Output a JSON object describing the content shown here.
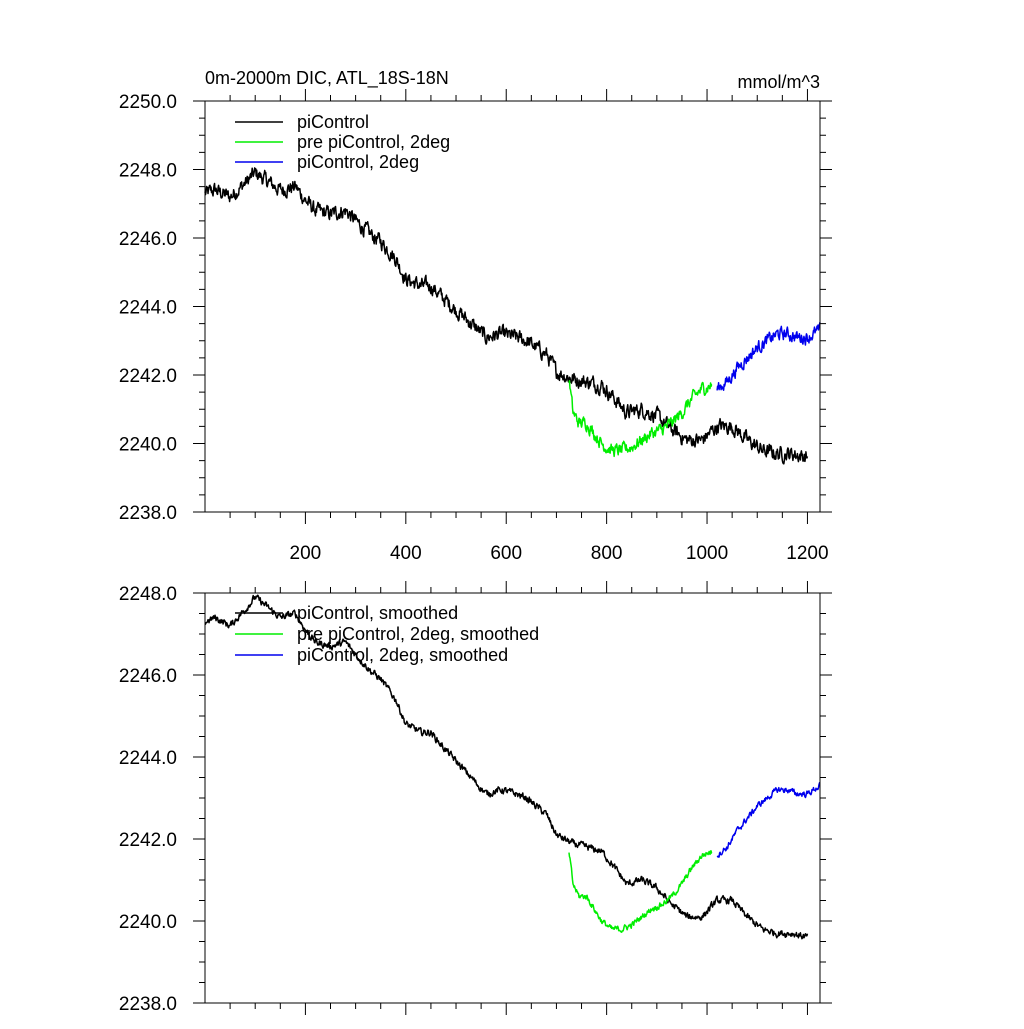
{
  "chart_data": [
    {
      "type": "line",
      "title": "0m-2000m DIC, ATL_18S-18N",
      "units": "mmol/m^3",
      "xlim": [
        0,
        1225
      ],
      "ylim": [
        2238,
        2250
      ],
      "xticks": [
        200,
        400,
        600,
        800,
        1000,
        1200
      ],
      "xtick_labels": [
        "200",
        "400",
        "600",
        "800",
        "1000",
        "1200"
      ],
      "yticks": [
        2238,
        2240,
        2242,
        2244,
        2246,
        2248,
        2250
      ],
      "ytick_labels": [
        "2238.0",
        "2240.0",
        "2242.0",
        "2244.0",
        "2246.0",
        "2248.0",
        "2250.0"
      ],
      "series": [
        {
          "name": "piControl",
          "color": "#000000",
          "noise": 0.35,
          "x": [
            0,
            20,
            50,
            80,
            100,
            120,
            150,
            180,
            200,
            220,
            250,
            280,
            300,
            330,
            350,
            380,
            400,
            430,
            450,
            470,
            500,
            530,
            560,
            590,
            620,
            640,
            660,
            680,
            700,
            730,
            760,
            790,
            810,
            840,
            870,
            900,
            930,
            960,
            990,
            1020,
            1050,
            1080,
            1110,
            1140,
            1170,
            1200
          ],
          "y": [
            2247.3,
            2247.4,
            2247.2,
            2247.6,
            2247.9,
            2247.7,
            2247.4,
            2247.5,
            2247.1,
            2246.8,
            2246.7,
            2246.8,
            2246.5,
            2246.1,
            2245.9,
            2245.4,
            2244.8,
            2244.6,
            2244.6,
            2244.3,
            2243.9,
            2243.5,
            2243.1,
            2243.2,
            2243.1,
            2243.0,
            2242.8,
            2242.6,
            2242.1,
            2241.9,
            2241.8,
            2241.7,
            2241.4,
            2240.9,
            2241.0,
            2240.8,
            2240.4,
            2240.1,
            2240.1,
            2240.5,
            2240.5,
            2240.1,
            2239.8,
            2239.7,
            2239.7,
            2239.6
          ]
        },
        {
          "name": "pre piControl, 2deg",
          "color": "#00ee00",
          "noise": 0.3,
          "x": [
            725,
            733,
            745,
            760,
            775,
            790,
            810,
            830,
            850,
            870,
            890,
            910,
            930,
            950,
            970,
            990,
            1010
          ],
          "y": [
            2241.9,
            2240.9,
            2240.6,
            2240.6,
            2240.3,
            2240.0,
            2239.8,
            2239.8,
            2239.9,
            2240.1,
            2240.3,
            2240.4,
            2240.6,
            2240.9,
            2241.3,
            2241.6,
            2241.7
          ]
        },
        {
          "name": "piControl, 2deg",
          "color": "#0000ee",
          "noise": 0.3,
          "x": [
            1020,
            1040,
            1060,
            1080,
            1100,
            1120,
            1140,
            1160,
            1180,
            1200,
            1225
          ],
          "y": [
            2241.6,
            2241.8,
            2242.2,
            2242.5,
            2242.8,
            2243.0,
            2243.2,
            2243.2,
            2243.1,
            2243.1,
            2243.3
          ]
        }
      ]
    },
    {
      "type": "line",
      "xlim": [
        0,
        1225
      ],
      "ylim": [
        2238,
        2248
      ],
      "xticks": [
        200,
        400,
        600,
        800,
        1000,
        1200
      ],
      "yticks": [
        2238,
        2240,
        2242,
        2244,
        2246,
        2248
      ],
      "ytick_labels": [
        "2238.0",
        "2240.0",
        "2242.0",
        "2244.0",
        "2246.0",
        "2248.0"
      ],
      "series": [
        {
          "name": "piControl, smoothed",
          "color": "#000000",
          "noise": 0.14,
          "x": [
            0,
            20,
            50,
            80,
            100,
            120,
            150,
            180,
            200,
            220,
            250,
            280,
            300,
            330,
            350,
            380,
            400,
            430,
            450,
            470,
            500,
            530,
            560,
            590,
            620,
            640,
            660,
            680,
            700,
            730,
            760,
            790,
            810,
            840,
            870,
            900,
            930,
            960,
            990,
            1020,
            1050,
            1080,
            1110,
            1140,
            1170,
            1200
          ],
          "y": [
            2247.3,
            2247.4,
            2247.2,
            2247.6,
            2247.9,
            2247.7,
            2247.4,
            2247.5,
            2247.1,
            2246.8,
            2246.7,
            2246.8,
            2246.5,
            2246.1,
            2245.9,
            2245.4,
            2244.8,
            2244.6,
            2244.6,
            2244.3,
            2243.9,
            2243.5,
            2243.1,
            2243.2,
            2243.1,
            2243.0,
            2242.8,
            2242.6,
            2242.1,
            2241.9,
            2241.8,
            2241.7,
            2241.4,
            2240.9,
            2241.0,
            2240.8,
            2240.4,
            2240.1,
            2240.1,
            2240.5,
            2240.5,
            2240.1,
            2239.8,
            2239.7,
            2239.7,
            2239.6
          ]
        },
        {
          "name": "pre piControl, 2deg, smoothed",
          "color": "#00ee00",
          "noise": 0.12,
          "x": [
            725,
            733,
            745,
            760,
            775,
            790,
            810,
            830,
            850,
            870,
            890,
            910,
            930,
            950,
            970,
            990,
            1010
          ],
          "y": [
            2241.7,
            2240.9,
            2240.6,
            2240.6,
            2240.3,
            2240.0,
            2239.8,
            2239.8,
            2239.9,
            2240.1,
            2240.3,
            2240.4,
            2240.6,
            2240.9,
            2241.3,
            2241.6,
            2241.7
          ]
        },
        {
          "name": "piControl, 2deg, smoothed",
          "color": "#0000ee",
          "noise": 0.12,
          "x": [
            1020,
            1040,
            1060,
            1080,
            1100,
            1120,
            1140,
            1160,
            1180,
            1200,
            1225
          ],
          "y": [
            2241.6,
            2241.8,
            2242.2,
            2242.5,
            2242.8,
            2243.0,
            2243.2,
            2243.2,
            2243.1,
            2243.1,
            2243.3
          ]
        }
      ]
    }
  ]
}
